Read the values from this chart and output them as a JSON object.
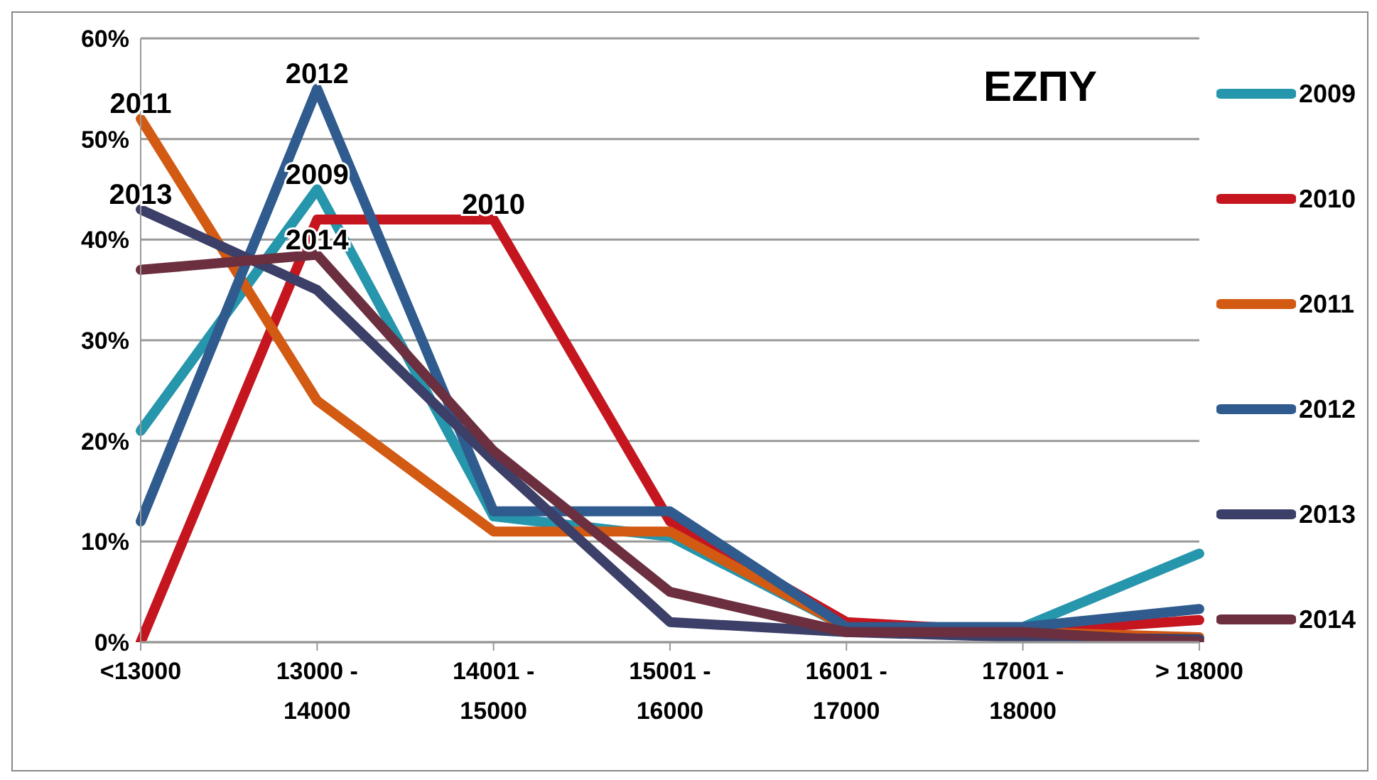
{
  "chart_data": {
    "type": "line",
    "title": "ΕΖΠΥ",
    "categories": [
      "<13000",
      "13000 - 14000",
      "14001 - 15000",
      "15001 - 16000",
      "16001 - 17000",
      "17001 - 18000",
      "> 18000"
    ],
    "series": [
      {
        "name": "2009",
        "color": "#2596ab",
        "values": [
          21,
          45,
          12.5,
          10.5,
          1.5,
          1.5,
          8.8
        ]
      },
      {
        "name": "2010",
        "color": "#c5161f",
        "values": [
          0,
          42,
          42,
          12,
          2,
          1,
          2.2
        ]
      },
      {
        "name": "2011",
        "color": "#d35a12",
        "values": [
          52,
          24,
          11,
          11,
          1.5,
          1,
          0.5
        ]
      },
      {
        "name": "2012",
        "color": "#2f5b8e",
        "values": [
          12,
          55,
          13,
          13,
          1.5,
          1.5,
          3.3
        ]
      },
      {
        "name": "2013",
        "color": "#3c3f68",
        "values": [
          43,
          35,
          18,
          2,
          1,
          0.5,
          0.3
        ]
      },
      {
        "name": "2014",
        "color": "#6c2f3f",
        "values": [
          37,
          38.5,
          19,
          5,
          1,
          1,
          0
        ]
      }
    ],
    "annotations": [
      {
        "text": "2011",
        "x": "<13000",
        "y": 52
      },
      {
        "text": "2012",
        "x": "13000 - 14000",
        "y": 55
      },
      {
        "text": "2009",
        "x": "13000 - 14000",
        "y": 45
      },
      {
        "text": "2013",
        "x": "<13000",
        "y": 43
      },
      {
        "text": "2014",
        "x": "13000 - 14000",
        "y": 38.5
      },
      {
        "text": "2010",
        "x": "14001 - 15000",
        "y": 42
      }
    ],
    "ylim": [
      0,
      60
    ],
    "yticks": [
      {
        "value": 0,
        "label": "0%"
      },
      {
        "value": 10,
        "label": "10%"
      },
      {
        "value": 20,
        "label": "20%"
      },
      {
        "value": 30,
        "label": "30%"
      },
      {
        "value": 40,
        "label": "40%"
      },
      {
        "value": 50,
        "label": "50%"
      },
      {
        "value": 60,
        "label": "60%"
      }
    ],
    "grid": "y",
    "legend": "right",
    "marker": "none",
    "line_style": "solid"
  }
}
